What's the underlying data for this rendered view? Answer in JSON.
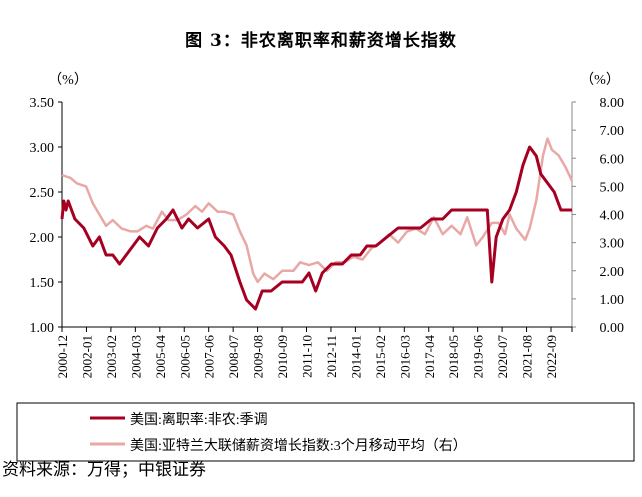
{
  "title": "图 3：非农离职率和薪资增长指数",
  "source": "资料来源：万得；中银证券",
  "chart_data": {
    "type": "line",
    "title": "图 3：非农离职率和薪资增长指数",
    "left_unit": "（%）",
    "right_unit": "（%）",
    "ylim_left": [
      1.0,
      3.5
    ],
    "ylim_right": [
      0.0,
      8.0
    ],
    "yticks_left": [
      "1.00",
      "1.50",
      "2.00",
      "2.50",
      "3.00",
      "3.50"
    ],
    "yticks_right": [
      "0.00",
      "1.00",
      "2.00",
      "3.00",
      "4.00",
      "5.00",
      "6.00",
      "7.00",
      "8.00"
    ],
    "xticks": [
      "2000-12",
      "2002-01",
      "2003-02",
      "2004-03",
      "2005-04",
      "2006-05",
      "2007-06",
      "2008-07",
      "2009-08",
      "2010-09",
      "2011-10",
      "2012-11",
      "2014-01",
      "2015-02",
      "2016-03",
      "2017-04",
      "2018-05",
      "2019-06",
      "2020-07",
      "2021-08",
      "2022-09"
    ],
    "xlim": [
      2000.92,
      2023.8
    ],
    "legend_position": "bottom",
    "series": [
      {
        "name": "美国:离职率:非农:季调",
        "axis": "left",
        "color": "#A50021",
        "x": [
          2000.92,
          2001.0,
          2001.1,
          2001.2,
          2001.5,
          2001.9,
          2002.1,
          2002.3,
          2002.6,
          2002.9,
          2003.2,
          2003.5,
          2003.8,
          2004.1,
          2004.4,
          2004.8,
          2005.2,
          2005.6,
          2005.9,
          2006.3,
          2006.6,
          2007.0,
          2007.5,
          2007.8,
          2008.2,
          2008.5,
          2008.9,
          2009.2,
          2009.6,
          2009.9,
          2010.3,
          2010.8,
          2011.3,
          2011.7,
          2012.0,
          2012.3,
          2012.6,
          2013.0,
          2013.5,
          2013.9,
          2014.3,
          2014.6,
          2015.0,
          2015.5,
          2016.0,
          2016.5,
          2017.0,
          2017.5,
          2018.0,
          2018.4,
          2019.0,
          2019.5,
          2020.0,
          2020.2,
          2020.4,
          2020.7,
          2021.0,
          2021.3,
          2021.6,
          2021.9,
          2022.2,
          2022.4,
          2022.7,
          2023.0,
          2023.3,
          2023.8
        ],
        "y": [
          2.2,
          2.4,
          2.3,
          2.4,
          2.2,
          2.1,
          2.0,
          1.9,
          2.0,
          1.8,
          1.8,
          1.7,
          1.8,
          1.9,
          2.0,
          1.9,
          2.1,
          2.2,
          2.3,
          2.1,
          2.2,
          2.1,
          2.2,
          2.0,
          1.9,
          1.8,
          1.5,
          1.3,
          1.2,
          1.4,
          1.4,
          1.5,
          1.5,
          1.5,
          1.6,
          1.4,
          1.6,
          1.7,
          1.7,
          1.8,
          1.8,
          1.9,
          1.9,
          2.0,
          2.1,
          2.1,
          2.1,
          2.2,
          2.2,
          2.3,
          2.3,
          2.3,
          2.3,
          1.5,
          2.0,
          2.2,
          2.3,
          2.5,
          2.8,
          3.0,
          2.9,
          2.7,
          2.6,
          2.5,
          2.3,
          2.3
        ]
      },
      {
        "name": "美国:亚特兰大联储薪资增长指数:3个月移动平均（右）",
        "axis": "right",
        "color": "#E8A9A6",
        "x": [
          2000.92,
          2001.3,
          2001.6,
          2002.0,
          2002.3,
          2002.6,
          2002.9,
          2003.2,
          2003.6,
          2004.0,
          2004.3,
          2004.7,
          2005.0,
          2005.4,
          2005.7,
          2006.1,
          2006.5,
          2006.9,
          2007.2,
          2007.5,
          2007.9,
          2008.2,
          2008.6,
          2008.9,
          2009.2,
          2009.5,
          2009.7,
          2010.0,
          2010.4,
          2010.8,
          2011.3,
          2011.6,
          2012.0,
          2012.4,
          2012.8,
          2013.2,
          2013.6,
          2014.0,
          2014.4,
          2014.8,
          2015.2,
          2015.6,
          2016.0,
          2016.4,
          2016.8,
          2017.2,
          2017.6,
          2018.0,
          2018.4,
          2018.8,
          2019.1,
          2019.5,
          2019.8,
          2020.2,
          2020.5,
          2020.8,
          2021.0,
          2021.3,
          2021.7,
          2021.9,
          2022.2,
          2022.5,
          2022.7,
          2022.9,
          2023.2,
          2023.5,
          2023.8
        ],
        "y": [
          5.4,
          5.3,
          5.1,
          5.0,
          4.4,
          4.0,
          3.6,
          3.8,
          3.5,
          3.4,
          3.4,
          3.6,
          3.5,
          4.1,
          3.8,
          3.8,
          4.0,
          4.3,
          4.1,
          4.4,
          4.1,
          4.1,
          4.0,
          3.4,
          2.9,
          1.9,
          1.6,
          1.9,
          1.7,
          2.0,
          2.0,
          2.3,
          2.2,
          2.3,
          2.0,
          2.3,
          2.3,
          2.5,
          2.4,
          2.8,
          3.0,
          3.3,
          3.0,
          3.4,
          3.5,
          3.3,
          3.9,
          3.3,
          3.6,
          3.3,
          3.9,
          2.9,
          3.2,
          3.7,
          3.7,
          3.3,
          4.0,
          3.5,
          3.1,
          3.5,
          4.5,
          6.1,
          6.7,
          6.3,
          6.1,
          5.7,
          5.2
        ]
      }
    ]
  }
}
